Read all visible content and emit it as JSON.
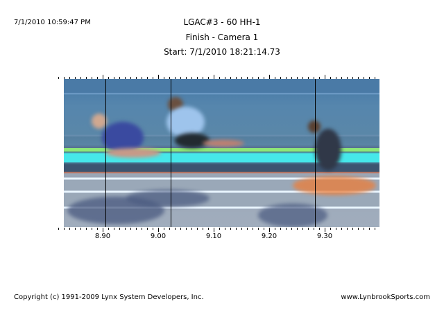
{
  "header": {
    "timestamp": "7/1/2010 10:59:47 PM",
    "title": "LGAC#3 - 60 HH-1",
    "subtitle": "Finish - Camera 1",
    "start": "Start: 7/1/2010 18:21:14.73"
  },
  "timeline": {
    "min": 8.82,
    "max": 9.39,
    "major_step": 0.1,
    "minor_step": 0.01,
    "labels": [
      {
        "v": 8.9,
        "text": "8.90"
      },
      {
        "v": 9.0,
        "text": "9.00"
      },
      {
        "v": 9.1,
        "text": "9.10"
      },
      {
        "v": 9.2,
        "text": "9.20"
      },
      {
        "v": 9.3,
        "text": "9.30"
      }
    ],
    "cursors": [
      8.905,
      9.022,
      9.283
    ]
  },
  "footer": {
    "copyright": "Copyright (c) 1991-2009 Lynx System Developers, Inc.",
    "website": "www.LynbrookSports.com"
  }
}
